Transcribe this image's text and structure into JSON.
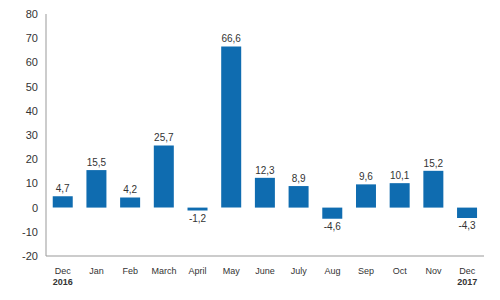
{
  "chart_data": {
    "type": "bar",
    "categories": [
      "Dec 2016",
      "Jan",
      "Feb",
      "March",
      "April",
      "May",
      "June",
      "July",
      "Aug",
      "Sep",
      "Oct",
      "Nov",
      "Dec 2017"
    ],
    "values": [
      4.7,
      15.5,
      4.2,
      25.7,
      -1.2,
      66.6,
      12.3,
      8.9,
      -4.6,
      9.6,
      10.1,
      15.2,
      -4.3
    ],
    "value_labels": [
      "4,7",
      "15,5",
      "4,2",
      "25,7",
      "-1,2",
      "66,6",
      "12,3",
      "8,9",
      "-4,6",
      "9,6",
      "10,1",
      "15,2",
      "-4,3"
    ],
    "color": "#0f6cb0",
    "ylim": [
      -20,
      80
    ],
    "yticks": [
      -20,
      -10,
      0,
      10,
      20,
      30,
      40,
      50,
      60,
      70,
      80
    ],
    "grid": false,
    "data_labels": true
  }
}
